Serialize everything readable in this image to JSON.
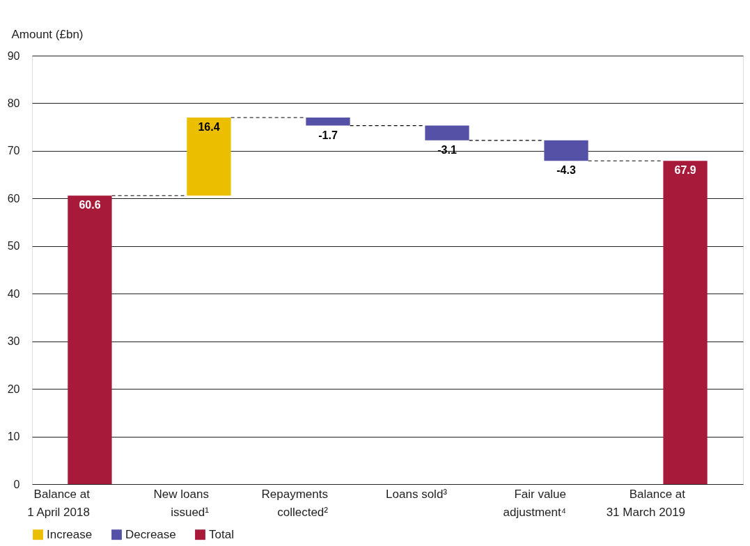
{
  "chart_data": {
    "type": "bar",
    "ylabel": "Amount (£bn)",
    "categories": [
      "Balance at 1 April 2018",
      "New loans issued¹",
      "Repayments collected²",
      "Loans sold³",
      "Fair value adjustment⁴",
      "Balance at 31 March 2019"
    ],
    "series": [
      {
        "name": "Increase",
        "color": "#ebbe00",
        "values": [
          null,
          16.4,
          null,
          null,
          null,
          null
        ],
        "base": [
          null,
          60.6,
          null,
          null,
          null,
          null
        ]
      },
      {
        "name": "Decrease",
        "color": "#5551a6",
        "values": [
          null,
          null,
          -1.7,
          -3.1,
          -4.3,
          null
        ],
        "base": [
          null,
          null,
          77.0,
          75.3,
          72.2,
          null
        ]
      },
      {
        "name": "Total",
        "color": "#a81a3a",
        "values": [
          60.6,
          null,
          null,
          null,
          null,
          67.9
        ],
        "base": [
          0,
          null,
          null,
          null,
          null,
          0
        ]
      }
    ],
    "ylim": [
      0,
      90
    ],
    "yticks": [
      0,
      10,
      20,
      30,
      40,
      50,
      60,
      70,
      80,
      90
    ],
    "grid": "y",
    "legend": "bottom left",
    "data_labels": true
  }
}
